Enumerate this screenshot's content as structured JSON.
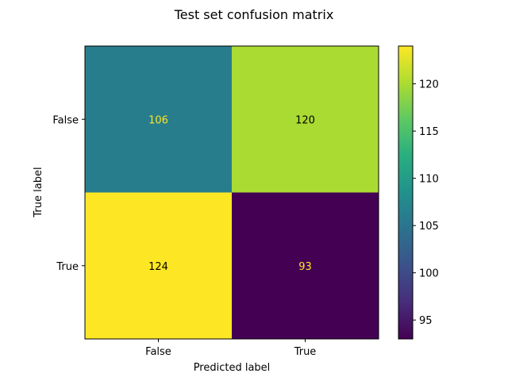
{
  "chart_data": {
    "type": "heatmap",
    "title": "Test set confusion matrix",
    "xlabel": "Predicted label",
    "ylabel": "True label",
    "x_categories": [
      "False",
      "True"
    ],
    "y_categories": [
      "False",
      "True"
    ],
    "values": [
      [
        106,
        120
      ],
      [
        124,
        93
      ]
    ],
    "colormap": "viridis",
    "colorbar": {
      "min": 93,
      "max": 124,
      "ticks": [
        95,
        100,
        105,
        110,
        115,
        120
      ],
      "tick_labels": [
        "95",
        "100",
        "105",
        "110",
        "115",
        "120"
      ]
    },
    "cell_text_colors": {
      "dark_background": "#fde725",
      "light_background": "#000000"
    }
  }
}
